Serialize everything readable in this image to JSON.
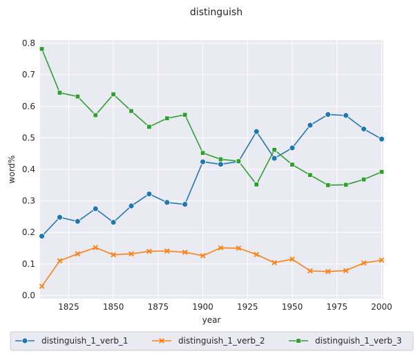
{
  "chart_data": {
    "type": "line",
    "title": "distinguish",
    "xlabel": "year",
    "ylabel": "word%",
    "xlim": [
      1809,
      2001
    ],
    "ylim": [
      -0.01,
      0.81
    ],
    "xticks": [
      1825,
      1850,
      1875,
      1900,
      1925,
      1950,
      1975,
      2000
    ],
    "yticks": [
      0.0,
      0.1,
      0.2,
      0.3,
      0.4,
      0.5,
      0.6,
      0.7,
      0.8
    ],
    "xtick_labels": [
      "1825",
      "1850",
      "1875",
      "1900",
      "1925",
      "1950",
      "1975",
      "2000"
    ],
    "ytick_labels": [
      "0.0",
      "0.1",
      "0.2",
      "0.3",
      "0.4",
      "0.5",
      "0.6",
      "0.7",
      "0.8"
    ],
    "grid": true,
    "legend_position": "bottom",
    "x": [
      1810,
      1820,
      1830,
      1840,
      1850,
      1860,
      1870,
      1880,
      1890,
      1900,
      1910,
      1920,
      1930,
      1940,
      1950,
      1960,
      1970,
      1980,
      1990,
      2000
    ],
    "series": [
      {
        "name": "distinguish_1_verb_1",
        "color": "#1f77b4",
        "marker": "circle",
        "values": [
          0.188,
          0.248,
          0.235,
          0.275,
          0.232,
          0.284,
          0.322,
          0.295,
          0.289,
          0.424,
          0.416,
          0.425,
          0.52,
          0.435,
          0.468,
          0.54,
          0.574,
          0.571,
          0.528,
          0.496
        ]
      },
      {
        "name": "distinguish_1_verb_2",
        "color": "#ff7f0e",
        "marker": "x",
        "values": [
          0.029,
          0.11,
          0.132,
          0.152,
          0.129,
          0.132,
          0.14,
          0.141,
          0.137,
          0.126,
          0.151,
          0.15,
          0.13,
          0.104,
          0.115,
          0.078,
          0.076,
          0.079,
          0.103,
          0.112
        ]
      },
      {
        "name": "distinguish_1_verb_3",
        "color": "#2ca02c",
        "marker": "square",
        "values": [
          0.782,
          0.643,
          0.631,
          0.572,
          0.638,
          0.585,
          0.535,
          0.562,
          0.573,
          0.452,
          0.432,
          0.426,
          0.352,
          0.462,
          0.415,
          0.382,
          0.35,
          0.351,
          0.368,
          0.392
        ]
      }
    ]
  }
}
